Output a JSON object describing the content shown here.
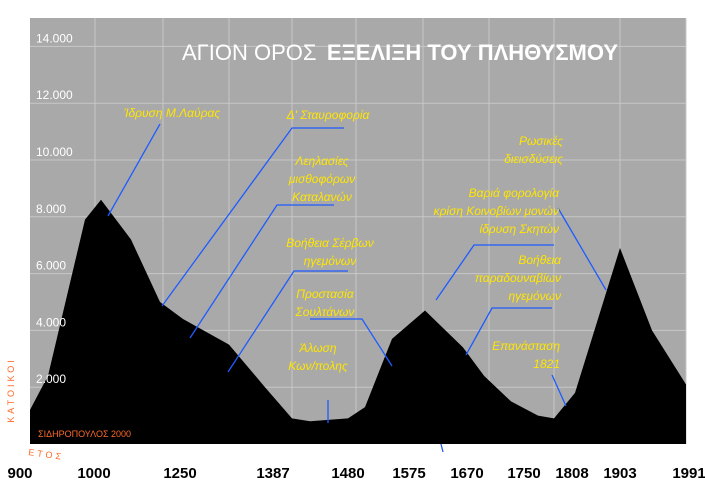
{
  "chart_data": {
    "type": "area",
    "title_part1": "ΑΓΙΟΝ ΟΡΟΣ",
    "title_part2": "ΕΞΕΛΙΞΗ ΤΟΥ ΠΛΗΘΥΣΜΟΥ",
    "ylabel": "ΚΑΤΟΙΚΟΙ",
    "xlabel": "ΕΤΟΣ",
    "credit": "ΣΙΔΗΡΟΠΟΥΛΟΣ 2000",
    "ylim": [
      0,
      15000
    ],
    "yticks": [
      2000,
      4000,
      6000,
      8000,
      10000,
      12000,
      14000
    ],
    "ytick_labels": [
      "2.000",
      "4.000",
      "6.000",
      "8.000",
      "10.000",
      "12.000",
      "14.000"
    ],
    "xtick_labels": [
      "900",
      "1000",
      "1250",
      "1387",
      "1480",
      "1575",
      "1670",
      "1750",
      "1808",
      "1903",
      "1991"
    ],
    "colors": {
      "background": "#a9a9a9",
      "area": "#000000",
      "annotation_text": "#ffe600",
      "annotation_line": "#1f5cff",
      "grid": "#c8c8c8"
    },
    "grid": true,
    "series": [
      {
        "x": [
          "900",
          "~950",
          "~980",
          "1000",
          "~1060",
          "~1120",
          "~1160",
          "1250",
          "~1320",
          "1387",
          "~1410",
          "1480",
          "~1520",
          "1575",
          "~1610",
          "1670",
          "~1700",
          "1750",
          "~1780",
          "1808",
          "~1830",
          "1903",
          "~1940",
          "1991"
        ],
        "values": [
          1200,
          2400,
          7900,
          8600,
          7200,
          5000,
          4400,
          3500,
          2000,
          900,
          800,
          900,
          1300,
          3700,
          4700,
          3400,
          2400,
          1500,
          1000,
          900,
          1800,
          6900,
          4000,
          2100
        ]
      }
    ],
    "annotations": [
      {
        "lines": [
          "Ίδρυση Μ.Λαύρας"
        ]
      },
      {
        "lines": [
          "Δ' Σταυροφορία"
        ]
      },
      {
        "lines": [
          "Λεηλασίες",
          "μισθοφόρων",
          "Καταλανών"
        ]
      },
      {
        "lines": [
          "Βοήθεια Σέρβων",
          "ηγεμόνων"
        ]
      },
      {
        "lines": [
          "Προστασία",
          "Σουλτάνων"
        ]
      },
      {
        "lines": [
          "Άλωση",
          "Κων/πολης"
        ]
      },
      {
        "lines": [
          "Ρωσικές",
          "διεισδύσεις"
        ]
      },
      {
        "lines": [
          "Βαριά φορολογία",
          "κρίση Κοινοβίων μονών",
          "ίδρυση Σκητών"
        ]
      },
      {
        "lines": [
          "Βοήθεια",
          "παραδουναβίων",
          "ηγεμόνων"
        ]
      },
      {
        "lines": [
          "Επανάσταση",
          "1821"
        ]
      }
    ]
  }
}
